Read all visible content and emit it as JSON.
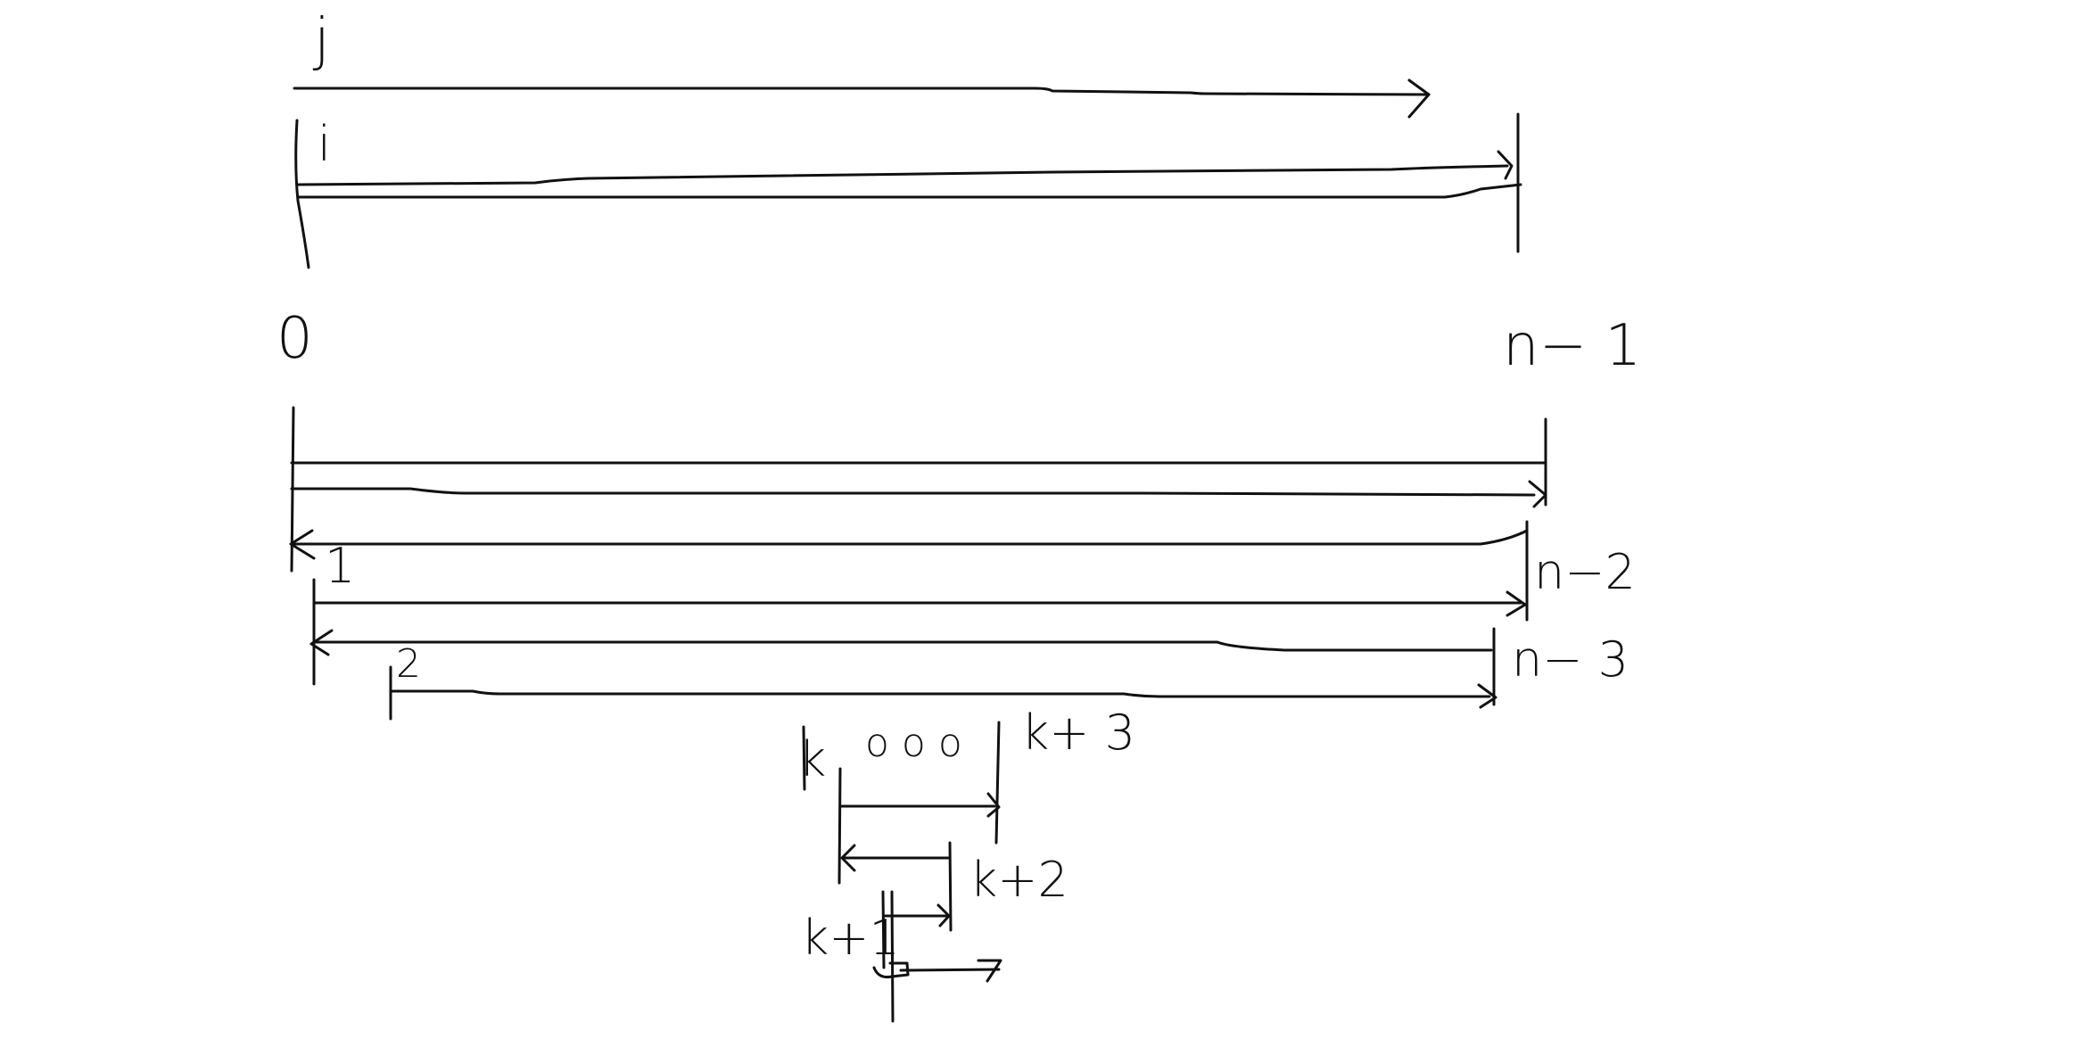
{
  "diagram": {
    "labels": {
      "j": "j",
      "i": "i",
      "zero": "0",
      "n_minus_1": "n− 1",
      "one": "1",
      "n_minus_2": "n−2",
      "n_minus_3": "n− 3",
      "two": "2",
      "k": "k",
      "ellipsis": "o o o",
      "k_plus_3": "k+ 3",
      "k_plus_2": "k+2",
      "k_plus_1": "k+1"
    },
    "ink_color": "#111111",
    "background": "#ffffff"
  }
}
